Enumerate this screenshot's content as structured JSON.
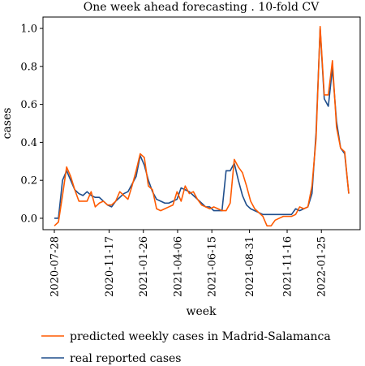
{
  "chart_data": {
    "type": "line",
    "title": "One week ahead forecasting . 10-fold CV",
    "xlabel": "week",
    "ylabel": "cases",
    "ylim": [
      -0.06,
      1.06
    ],
    "yticks": [
      0.0,
      0.2,
      0.4,
      0.6,
      0.8,
      1.0
    ],
    "ytick_labels": [
      "0.0",
      "0.2",
      "0.4",
      "0.6",
      "0.8",
      "1.0"
    ],
    "x_start": "2020-07-28",
    "x_end": "2022-03-22",
    "xticks": [
      "2020-07-28",
      "2020-11-17",
      "2021-01-26",
      "2021-04-06",
      "2021-06-15",
      "2021-08-31",
      "2021-11-16",
      "2022-01-25"
    ],
    "grid": false,
    "legend_position": "bottom",
    "colors": {
      "real": "#1f4e8c",
      "predicted": "#ff5a00"
    },
    "series": [
      {
        "name": "predicted weekly cases in Madrid-Salamanca",
        "color": "#ff5a00",
        "values": [
          -0.04,
          -0.02,
          0.12,
          0.27,
          0.22,
          0.15,
          0.09,
          0.09,
          0.09,
          0.14,
          0.06,
          0.08,
          0.09,
          0.07,
          0.07,
          0.09,
          0.14,
          0.12,
          0.1,
          0.17,
          0.25,
          0.34,
          0.32,
          0.17,
          0.15,
          0.05,
          0.04,
          0.05,
          0.06,
          0.07,
          0.14,
          0.09,
          0.17,
          0.13,
          0.14,
          0.1,
          0.07,
          0.06,
          0.05,
          0.06,
          0.05,
          0.04,
          0.04,
          0.08,
          0.31,
          0.27,
          0.24,
          0.17,
          0.09,
          0.05,
          0.03,
          0.01,
          -0.04,
          -0.04,
          -0.01,
          0.0,
          0.01,
          0.01,
          0.01,
          0.02,
          0.06,
          0.05,
          0.06,
          0.17,
          0.42,
          1.01,
          0.65,
          0.65,
          0.83,
          0.48,
          0.37,
          0.35,
          0.13
        ]
      },
      {
        "name": "real reported cases",
        "color": "#1f4e8c",
        "values": [
          0.0,
          0.0,
          0.2,
          0.25,
          0.2,
          0.15,
          0.13,
          0.12,
          0.14,
          0.12,
          0.11,
          0.11,
          0.09,
          0.07,
          0.06,
          0.09,
          0.11,
          0.13,
          0.14,
          0.18,
          0.22,
          0.33,
          0.28,
          0.2,
          0.14,
          0.1,
          0.09,
          0.08,
          0.08,
          0.09,
          0.1,
          0.16,
          0.15,
          0.14,
          0.12,
          0.1,
          0.08,
          0.06,
          0.06,
          0.04,
          0.04,
          0.04,
          0.25,
          0.25,
          0.29,
          0.2,
          0.12,
          0.07,
          0.05,
          0.04,
          0.03,
          0.02,
          0.02,
          0.02,
          0.02,
          0.02,
          0.02,
          0.02,
          0.02,
          0.05,
          0.04,
          0.05,
          0.06,
          0.13,
          0.45,
          1.0,
          0.63,
          0.59,
          0.79,
          0.51,
          0.37,
          0.34,
          0.13
        ]
      }
    ]
  }
}
